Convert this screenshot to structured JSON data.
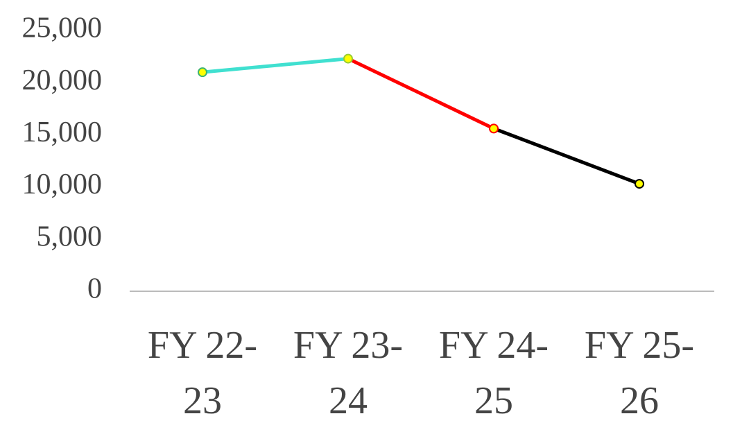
{
  "chart_data": {
    "type": "line",
    "categories": [
      "FY 22-23",
      "FY 23-24",
      "FY 24-25",
      "FY 25-26"
    ],
    "values": [
      21000,
      22300,
      15600,
      10300
    ],
    "segment_colors": [
      "#40e0d0",
      "#ff0000",
      "#000000"
    ],
    "marker_color": "#ffff00",
    "marker_edge_colors": [
      "#3cb371",
      "#9acd32",
      "#ff0000",
      "#000000"
    ],
    "ylim": [
      0,
      25000
    ],
    "yticks": [
      0,
      {
        "value": 5000,
        "label": "5,000"
      },
      {
        "value": 10000,
        "label": "10,000"
      },
      {
        "value": 15000,
        "label": "15,000"
      },
      {
        "value": 20000,
        "label": "20,000"
      },
      {
        "value": 25000,
        "label": "25,000"
      }
    ],
    "grid": false
  }
}
